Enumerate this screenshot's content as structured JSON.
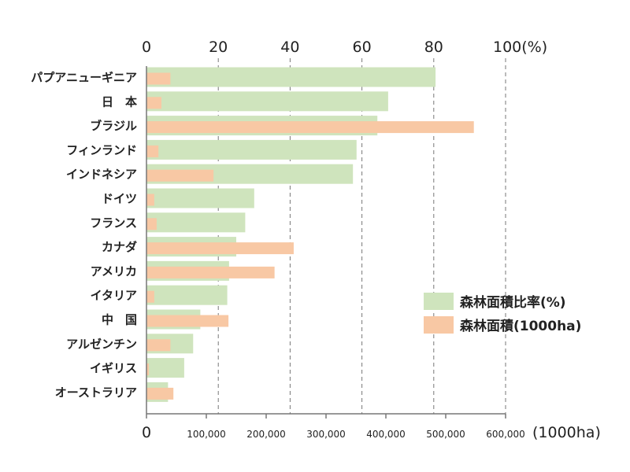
{
  "chart_data": {
    "type": "bar",
    "orientation": "horizontal",
    "categories": [
      "パプアニューギニア",
      "日　本",
      "ブラジル",
      "フィンランド",
      "インドネシア",
      "ドイツ",
      "フランス",
      "カナダ",
      "アメリカ",
      "イタリア",
      "中　国",
      "アルゼンチン",
      "イギリス",
      "オーストラリア"
    ],
    "series": [
      {
        "name": "森林面積比率(%)",
        "axis": "top",
        "color": "#cfe4bd",
        "values": [
          80.5,
          67.3,
          64.3,
          58.5,
          57.5,
          30.0,
          27.5,
          25.0,
          23.0,
          22.5,
          15.0,
          13.0,
          10.5,
          6.0
        ]
      },
      {
        "name": "森林面積(1000ha)",
        "axis": "bottom",
        "color": "#f8c8a4",
        "values": [
          40000,
          25000,
          547000,
          20000,
          112000,
          13000,
          17000,
          246000,
          214000,
          13000,
          137000,
          40000,
          4000,
          45000
        ]
      }
    ],
    "x_top": {
      "ylim": [
        0,
        100
      ],
      "ticks": [
        "0",
        "20",
        "40",
        "60",
        "80",
        "100(%)"
      ],
      "tick_values": [
        0,
        20,
        40,
        60,
        80,
        100
      ]
    },
    "x_bottom": {
      "xlim": [
        0,
        600000
      ],
      "ticks": [
        "0",
        "100,000",
        "200,000",
        "300,000",
        "400,000",
        "500,000",
        "600,000"
      ],
      "tick_values": [
        0,
        100000,
        200000,
        300000,
        400000,
        500000,
        600000
      ],
      "unit": "(1000ha)"
    },
    "grid": "dashed vertical at 20,40,60,80,100",
    "legend_position": "right"
  }
}
